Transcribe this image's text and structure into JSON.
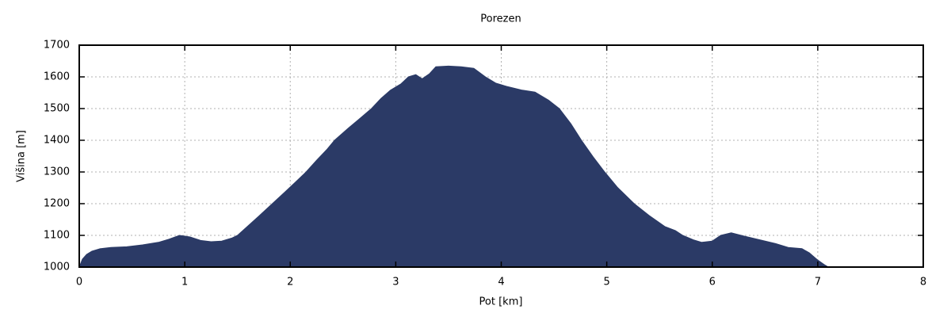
{
  "title": "Porezen",
  "colors": {
    "fill": "#2b3a66",
    "axis": "#000000",
    "grid": "#b0b0b0",
    "background": "#ffffff",
    "text": "#000000"
  },
  "chart_data": {
    "type": "area",
    "title": "Porezen",
    "xlabel": "Pot [km]",
    "ylabel": "Višina [m]",
    "xlim": [
      0,
      8
    ],
    "ylim": [
      1000,
      1700
    ],
    "x_ticks": [
      0,
      1,
      2,
      3,
      4,
      5,
      6,
      7,
      8
    ],
    "y_ticks": [
      1000,
      1100,
      1200,
      1300,
      1400,
      1500,
      1600,
      1700
    ],
    "grid": true,
    "legend": false,
    "series": [
      {
        "name": "elevation-profile",
        "x": [
          0.0,
          0.03,
          0.07,
          0.12,
          0.2,
          0.3,
          0.45,
          0.6,
          0.75,
          0.85,
          0.95,
          1.05,
          1.15,
          1.25,
          1.35,
          1.45,
          1.5,
          1.6,
          1.7,
          1.83,
          1.95,
          2.05,
          2.15,
          2.25,
          2.35,
          2.42,
          2.55,
          2.65,
          2.77,
          2.86,
          2.95,
          3.05,
          3.12,
          3.19,
          3.25,
          3.32,
          3.38,
          3.5,
          3.62,
          3.74,
          3.85,
          3.95,
          4.05,
          4.2,
          4.32,
          4.45,
          4.55,
          4.66,
          4.76,
          4.87,
          4.98,
          5.1,
          5.26,
          5.4,
          5.55,
          5.65,
          5.72,
          5.82,
          5.9,
          6.0,
          6.08,
          6.18,
          6.3,
          6.45,
          6.6,
          6.72,
          6.85,
          6.92,
          7.0,
          7.06,
          7.1
        ],
        "y": [
          1000,
          1025,
          1040,
          1050,
          1058,
          1062,
          1064,
          1070,
          1078,
          1088,
          1100,
          1095,
          1084,
          1080,
          1082,
          1092,
          1100,
          1130,
          1160,
          1200,
          1237,
          1268,
          1300,
          1337,
          1372,
          1400,
          1438,
          1466,
          1500,
          1532,
          1558,
          1578,
          1600,
          1607,
          1594,
          1610,
          1632,
          1634,
          1632,
          1627,
          1600,
          1580,
          1570,
          1558,
          1552,
          1526,
          1500,
          1452,
          1400,
          1348,
          1300,
          1252,
          1200,
          1163,
          1128,
          1115,
          1100,
          1086,
          1078,
          1082,
          1100,
          1108,
          1098,
          1086,
          1074,
          1062,
          1058,
          1045,
          1022,
          1008,
          1000
        ]
      }
    ]
  }
}
